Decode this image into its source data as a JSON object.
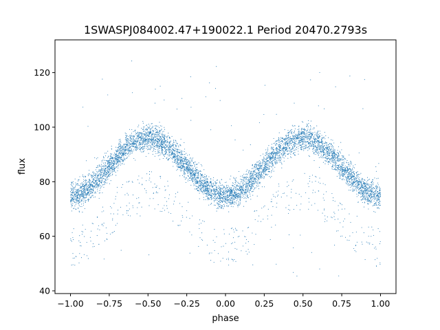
{
  "chart_data": {
    "type": "scatter",
    "title": "1SWASPJ084002.47+190022.1 Period 20470.2793s",
    "xlabel": "phase",
    "ylabel": "flux",
    "xlim": [
      -1.1,
      1.1
    ],
    "ylim": [
      39,
      132
    ],
    "xticks": [
      -1.0,
      -0.75,
      -0.5,
      -0.25,
      0.0,
      0.25,
      0.5,
      0.75,
      1.0
    ],
    "xtick_labels": [
      "−1.00",
      "−0.75",
      "−0.50",
      "−0.25",
      "0.00",
      "0.25",
      "0.50",
      "0.75",
      "1.00"
    ],
    "yticks": [
      40,
      60,
      80,
      100,
      120
    ],
    "ytick_labels": [
      "40",
      "60",
      "80",
      "100",
      "120"
    ],
    "grid": false,
    "point_color": "#1f77b4",
    "series": [
      {
        "phase_range": [
          -1.0,
          1.0
        ],
        "period_in_phase": 1.0,
        "main_band": {
          "max_flux": 96,
          "max_phase": [
            -0.5,
            0.5
          ],
          "min_flux": 75,
          "min_phase": [
            -1.0,
            0.0,
            1.0
          ]
        },
        "faint_branch_flux_range": [
          45,
          80
        ],
        "approx_points": 7000
      }
    ]
  }
}
